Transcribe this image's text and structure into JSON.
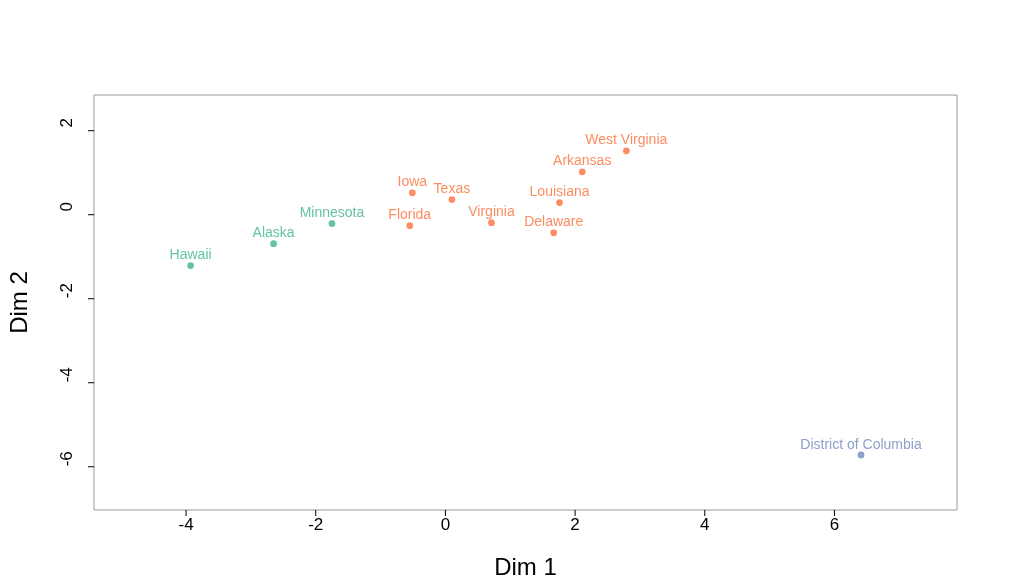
{
  "chart_data": {
    "type": "scatter",
    "xlabel": "Dim 1",
    "ylabel": "Dim 2",
    "xlim": [
      -5.42,
      7.89
    ],
    "ylim": [
      -7.03,
      2.85
    ],
    "xticks": [
      -4,
      -2,
      0,
      2,
      4,
      6
    ],
    "yticks": [
      -6,
      -4,
      -2,
      0,
      2
    ],
    "marker": "circle",
    "series": [
      {
        "color": "#66c2a5",
        "x": [
          -3.93,
          -2.65,
          -1.75
        ],
        "values": [
          -1.21,
          -0.69,
          -0.21
        ],
        "value_labels": [
          "Hawaii",
          "Alaska",
          "Minnesota"
        ]
      },
      {
        "color": "#fc8d62",
        "x": [
          2.79,
          2.11,
          1.76,
          1.67,
          0.71,
          -0.51,
          0.1,
          -0.55
        ],
        "values": [
          1.52,
          1.02,
          0.29,
          -0.43,
          -0.19,
          0.52,
          0.36,
          -0.26
        ],
        "value_labels": [
          "West Virginia",
          "Arkansas",
          "Louisiana",
          "Delaware",
          "Virginia",
          "Iowa",
          "Texas",
          "Florida"
        ]
      },
      {
        "color": "#8da0cb",
        "x": [
          6.41
        ],
        "values": [
          -5.72
        ],
        "value_labels": [
          "District of Columbia"
        ]
      }
    ]
  }
}
